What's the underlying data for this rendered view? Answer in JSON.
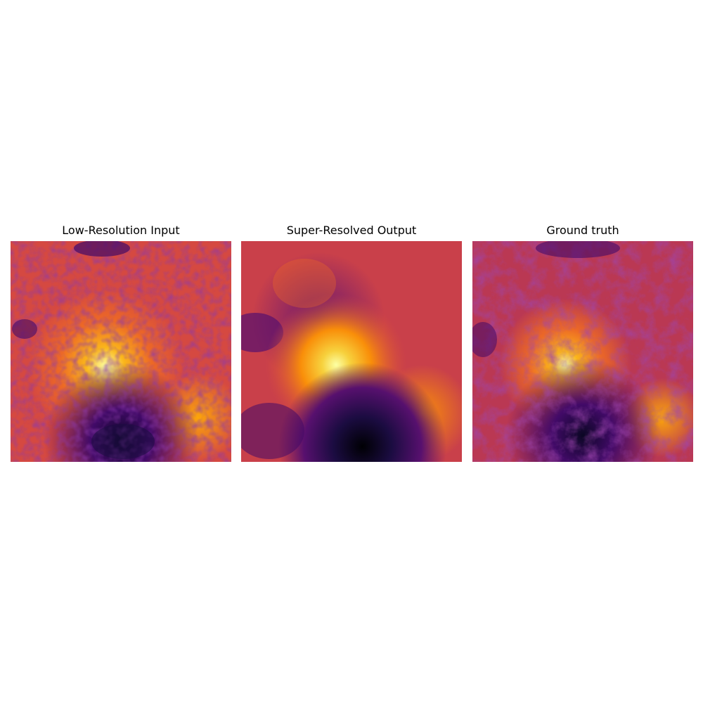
{
  "figure": {
    "panels": [
      {
        "title": "Low-Resolution Input"
      },
      {
        "title": "Super-Resolved Output"
      },
      {
        "title": "Ground truth"
      }
    ]
  },
  "colors": {
    "colormap": "inferno",
    "background": "#ffffff"
  }
}
